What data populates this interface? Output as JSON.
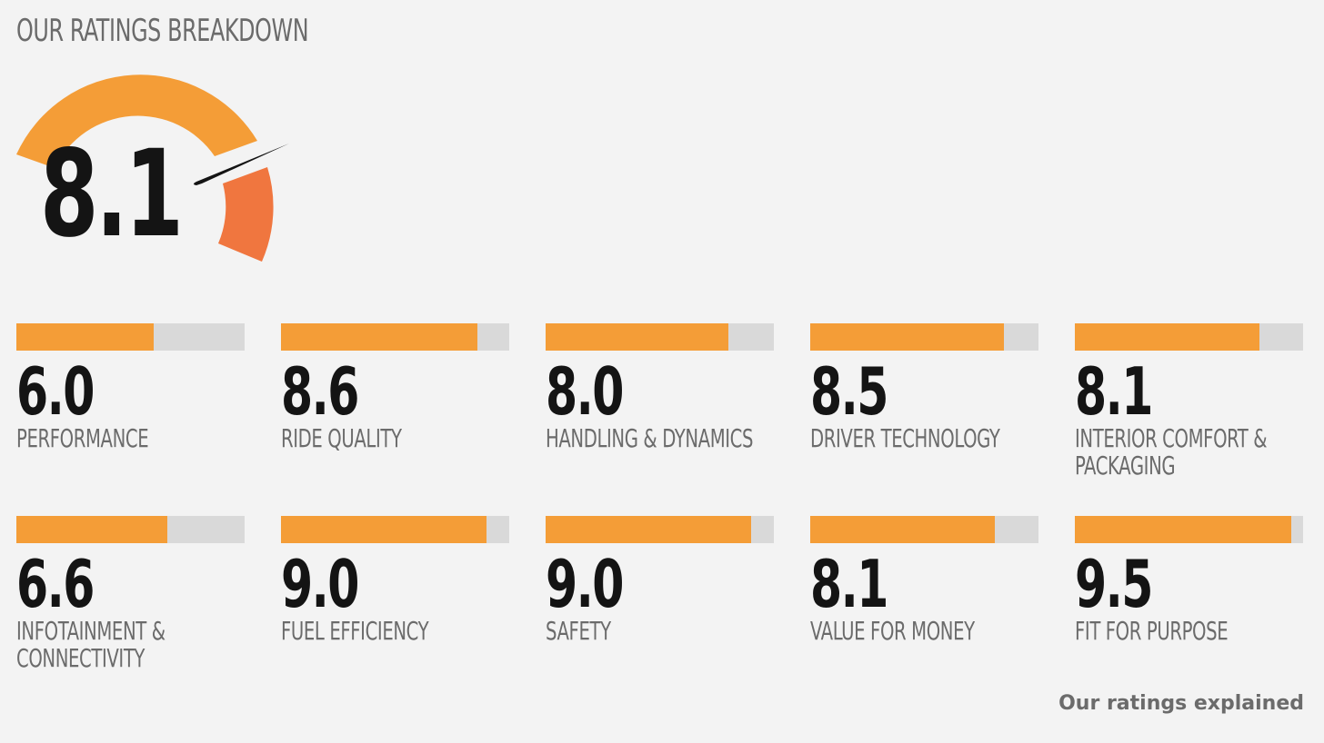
{
  "heading": "OUR RATINGS BREAKDOWN",
  "overall": {
    "score": "8.1",
    "value": 8.1
  },
  "colors": {
    "accent": "#f49d37",
    "accent_dark": "#f0763f",
    "track": "#d9d9d9",
    "needle": "#141414"
  },
  "ratings": [
    {
      "score": "6.0",
      "value": 6.0,
      "label": "PERFORMANCE"
    },
    {
      "score": "8.6",
      "value": 8.6,
      "label": "RIDE QUALITY"
    },
    {
      "score": "8.0",
      "value": 8.0,
      "label": "HANDLING & DYNAMICS"
    },
    {
      "score": "8.5",
      "value": 8.5,
      "label": "DRIVER TECHNOLOGY"
    },
    {
      "score": "8.1",
      "value": 8.1,
      "label": "INTERIOR COMFORT & PACKAGING"
    },
    {
      "score": "6.6",
      "value": 6.6,
      "label": "INFOTAINMENT & CONNECTIVITY"
    },
    {
      "score": "9.0",
      "value": 9.0,
      "label": "FUEL EFFICIENCY"
    },
    {
      "score": "9.0",
      "value": 9.0,
      "label": "SAFETY"
    },
    {
      "score": "8.1",
      "value": 8.1,
      "label": "VALUE FOR MONEY"
    },
    {
      "score": "9.5",
      "value": 9.5,
      "label": "FIT FOR PURPOSE"
    }
  ],
  "footer_link": "Our ratings explained"
}
